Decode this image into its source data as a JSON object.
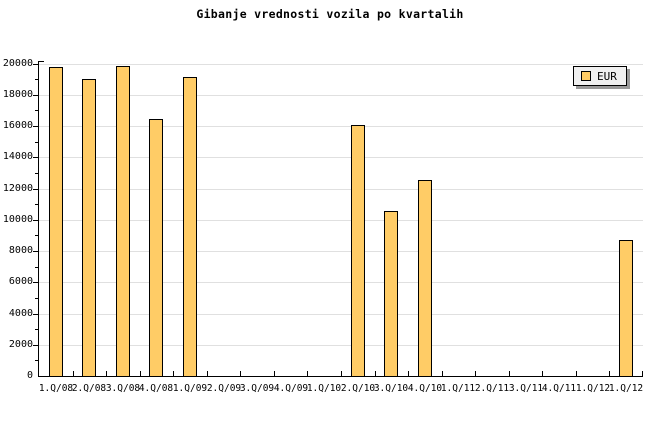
{
  "chart_data": {
    "type": "bar",
    "title": "Gibanje vrednosti vozila po kvartalih",
    "categories": [
      "1.Q/08",
      "2.Q/08",
      "3.Q/08",
      "4.Q/08",
      "1.Q/09",
      "2.Q/09",
      "3.Q/09",
      "4.Q/09",
      "1.Q/10",
      "2.Q/10",
      "3.Q/10",
      "4.Q/10",
      "1.Q/11",
      "2.Q/11",
      "3.Q/11",
      "4.Q/11",
      "1.Q/12",
      "1.Q/12"
    ],
    "series": [
      {
        "name": "EUR",
        "values": [
          19800,
          19000,
          19850,
          16450,
          19150,
          0,
          0,
          0,
          0,
          16050,
          10550,
          12550,
          0,
          0,
          0,
          0,
          0,
          8700
        ]
      }
    ],
    "xlabel": "",
    "ylabel": "",
    "ylim": [
      0,
      20000
    ],
    "ytick_major": 2000,
    "ytick_minor": 1000,
    "grid": "horizontal-major",
    "legend": {
      "label": "EUR",
      "position": "top-right"
    },
    "colors": {
      "bar_fill": "#FFCC66",
      "bar_border": "#000000",
      "grid": "#E0E0E0",
      "axis": "#000000",
      "text": "#000000",
      "legend_bg": "#F0F0F0",
      "legend_shadow": "#999999",
      "background": "#FFFFFF"
    }
  }
}
